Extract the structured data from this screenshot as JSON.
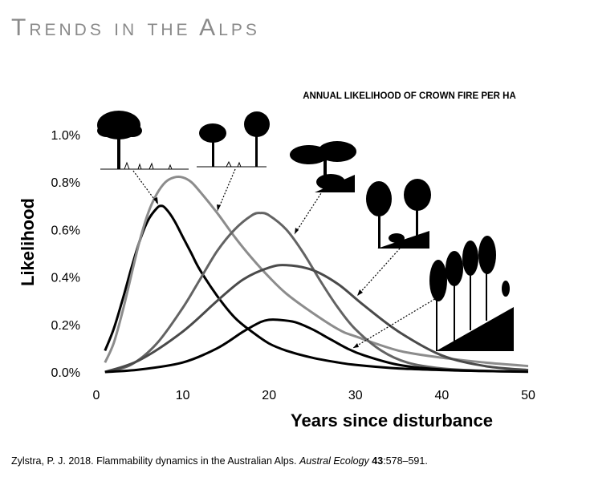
{
  "slide": {
    "title": "Trends in the Alps"
  },
  "citation": {
    "authors_year": "Zylstra, P. J. 2018. Flammability dynamics in the Australian Alps. ",
    "journal": "Austral Ecology",
    "volume": "43",
    "pages": ":578–591."
  },
  "colors": {
    "black": "#000000",
    "light_grey": "#8c8c8c",
    "mid_grey": "#636363",
    "dark_grey": "#4a4a4a"
  },
  "chart_data": {
    "type": "line",
    "title": "ANNUAL LIKELIHOOD OF CROWN FIRE PER HA",
    "xlabel": "Years since disturbance",
    "ylabel": "Likelihood",
    "xlim": [
      0,
      50
    ],
    "ylim": [
      0,
      1.0
    ],
    "x_ticks": [
      "0",
      "10",
      "20",
      "30",
      "40",
      "50"
    ],
    "y_ticks": [
      "0.0%",
      "0.2%",
      "0.4%",
      "0.6%",
      "0.8%",
      "1.0%"
    ],
    "series": [
      {
        "name": "black-early-peak",
        "color": "#000000",
        "x": [
          1,
          2,
          3,
          4,
          5,
          6,
          7,
          7.5,
          8,
          9,
          10,
          11,
          12,
          14,
          16,
          18,
          20,
          22,
          25,
          28,
          30,
          35,
          40,
          45,
          50
        ],
        "y": [
          0.09,
          0.18,
          0.3,
          0.43,
          0.55,
          0.64,
          0.69,
          0.7,
          0.69,
          0.64,
          0.57,
          0.5,
          0.43,
          0.32,
          0.23,
          0.17,
          0.12,
          0.09,
          0.06,
          0.04,
          0.03,
          0.015,
          0.008,
          0.004,
          0.002
        ]
      },
      {
        "name": "light-grey-early-peak",
        "color": "#8c8c8c",
        "x": [
          1,
          2,
          3,
          4,
          5,
          6,
          7,
          8,
          9,
          10,
          11,
          12,
          14,
          16,
          18,
          20,
          22,
          25,
          28,
          30,
          35,
          40,
          45,
          50
        ],
        "y": [
          0.04,
          0.12,
          0.25,
          0.4,
          0.55,
          0.67,
          0.75,
          0.8,
          0.82,
          0.82,
          0.8,
          0.76,
          0.67,
          0.57,
          0.48,
          0.4,
          0.33,
          0.25,
          0.18,
          0.15,
          0.09,
          0.06,
          0.04,
          0.025
        ]
      },
      {
        "name": "mid-grey-mid-peak",
        "color": "#636363",
        "x": [
          1,
          4,
          7,
          10,
          12,
          14,
          16,
          18,
          19,
          20,
          22,
          24,
          26,
          28,
          30,
          33,
          36,
          40,
          45,
          50
        ],
        "y": [
          0.0,
          0.03,
          0.12,
          0.27,
          0.39,
          0.51,
          0.6,
          0.66,
          0.67,
          0.66,
          0.6,
          0.5,
          0.38,
          0.27,
          0.18,
          0.09,
          0.04,
          0.015,
          0.005,
          0.002
        ]
      },
      {
        "name": "dark-grey-broad-peak",
        "color": "#4a4a4a",
        "x": [
          1,
          5,
          10,
          14,
          17,
          20,
          22,
          25,
          28,
          31,
          35,
          40,
          45,
          50
        ],
        "y": [
          0.0,
          0.05,
          0.17,
          0.3,
          0.39,
          0.44,
          0.45,
          0.43,
          0.37,
          0.28,
          0.17,
          0.07,
          0.025,
          0.008
        ]
      },
      {
        "name": "black-late-peak",
        "color": "#000000",
        "x": [
          1,
          5,
          10,
          14,
          17,
          19,
          20,
          21,
          23,
          25,
          27,
          29,
          31,
          35,
          40,
          45,
          50
        ],
        "y": [
          0.0,
          0.01,
          0.04,
          0.1,
          0.17,
          0.21,
          0.22,
          0.22,
          0.21,
          0.18,
          0.14,
          0.1,
          0.07,
          0.03,
          0.01,
          0.004,
          0.001
        ]
      }
    ]
  }
}
